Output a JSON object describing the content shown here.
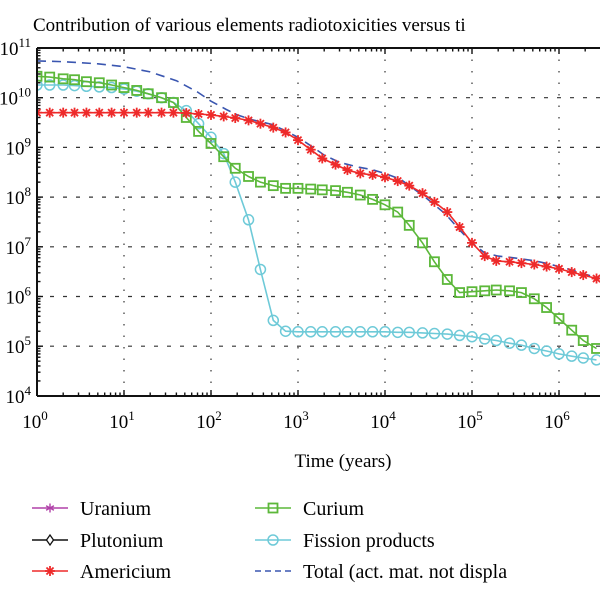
{
  "chart_data": {
    "type": "line",
    "title": "Contribution of various elements radiotoxicities versus ti",
    "xlabel": "Time (years)",
    "ylabel": "",
    "xscale": "log",
    "yscale": "log",
    "xlim": [
      1,
      3000000.0
    ],
    "ylim": [
      10000.0,
      100000000000.0
    ],
    "grid": true,
    "x_ticks": [
      {
        "value": 1,
        "base": "10",
        "exp": "0"
      },
      {
        "value": 10,
        "base": "10",
        "exp": "1"
      },
      {
        "value": 100,
        "base": "10",
        "exp": "2"
      },
      {
        "value": 1000,
        "base": "10",
        "exp": "3"
      },
      {
        "value": 10000,
        "base": "10",
        "exp": "4"
      },
      {
        "value": 100000,
        "base": "10",
        "exp": "5"
      },
      {
        "value": 1000000,
        "base": "10",
        "exp": "6"
      }
    ],
    "y_ticks": [
      {
        "value": 10000.0,
        "base": "10",
        "exp": "4"
      },
      {
        "value": 100000.0,
        "base": "10",
        "exp": "5"
      },
      {
        "value": 1000000.0,
        "base": "10",
        "exp": "6"
      },
      {
        "value": 10000000.0,
        "base": "10",
        "exp": "7"
      },
      {
        "value": 100000000.0,
        "base": "10",
        "exp": "8"
      },
      {
        "value": 1000000000.0,
        "base": "10",
        "exp": "9"
      },
      {
        "value": 10000000000.0,
        "base": "10",
        "exp": "10"
      },
      {
        "value": 100000000000.0,
        "base": "10",
        "exp": "11"
      }
    ],
    "legend_position": "bottom",
    "series": [
      {
        "name": "Uranium",
        "color": "#b040a8",
        "marker": "star",
        "dash": false,
        "x": [],
        "y": []
      },
      {
        "name": "Plutonium",
        "color": "#111111",
        "marker": "diamond",
        "dash": false,
        "x": [],
        "y": []
      },
      {
        "name": "Americium",
        "color": "#ee2a2a",
        "marker": "asterisk",
        "dash": false,
        "x": [
          1,
          1.4,
          2,
          2.7,
          3.7,
          5.2,
          7.2,
          10,
          14,
          19,
          27,
          37,
          52,
          72,
          100,
          140,
          190,
          270,
          370,
          520,
          720,
          1000,
          1400,
          1900,
          2700,
          3700,
          5200,
          7200,
          10000,
          14000,
          19000,
          27000,
          37000,
          52000,
          72000,
          100000,
          140000,
          190000,
          270000,
          370000,
          520000,
          720000,
          1000000,
          1400000,
          1900000,
          2700000
        ],
        "y": [
          5000000000.0,
          5000000000.0,
          5000000000.0,
          5000000000.0,
          5000000000.0,
          5000000000.0,
          5000000000.0,
          5000000000.0,
          5000000000.0,
          5000000000.0,
          5000000000.0,
          5000000000.0,
          4900000000.0,
          4700000000.0,
          4500000000.0,
          4200000000.0,
          3900000000.0,
          3500000000.0,
          3000000000.0,
          2500000000.0,
          2000000000.0,
          1400000000.0,
          900000000.0,
          600000000.0,
          450000000.0,
          350000000.0,
          300000000.0,
          280000000.0,
          250000000.0,
          210000000.0,
          170000000.0,
          120000000.0,
          80000000.0,
          50000000.0,
          25000000.0,
          12000000.0,
          6500000.0,
          5200000.0,
          5000000.0,
          4700000.0,
          4400000.0,
          4000000.0,
          3600000.0,
          3100000.0,
          2700000.0,
          2300000.0
        ]
      },
      {
        "name": "Curium",
        "color": "#5cb83a",
        "marker": "square",
        "dash": false,
        "x": [
          1,
          1.4,
          2,
          2.7,
          3.7,
          5.2,
          7.2,
          10,
          14,
          19,
          27,
          37,
          52,
          72,
          100,
          140,
          190,
          270,
          370,
          520,
          720,
          1000,
          1400,
          1900,
          2700,
          3700,
          5200,
          7200,
          10000,
          14000,
          19000,
          27000,
          37000,
          52000,
          72000,
          100000,
          140000,
          190000,
          270000,
          370000,
          520000,
          720000,
          1000000,
          1400000,
          1900000,
          2700000
        ],
        "y": [
          27000000000.0,
          26000000000.0,
          24000000000.0,
          23000000000.0,
          21000000000.0,
          20000000000.0,
          18000000000.0,
          16000000000.0,
          14000000000.0,
          12000000000.0,
          10000000000.0,
          8000000000.0,
          4000000000.0,
          2100000000.0,
          1200000000.0,
          650000000.0,
          380000000.0,
          260000000.0,
          200000000.0,
          170000000.0,
          150000000.0,
          150000000.0,
          145000000.0,
          140000000.0,
          135000000.0,
          125000000.0,
          110000000.0,
          90000000.0,
          70000000.0,
          50000000.0,
          27000000.0,
          12000000.0,
          5000000.0,
          2200000.0,
          1200000.0,
          1250000.0,
          1300000.0,
          1350000.0,
          1300000.0,
          1200000.0,
          900000.0,
          600000.0,
          360000.0,
          210000.0,
          130000.0,
          90000.0
        ]
      },
      {
        "name": "Fission products",
        "color": "#6ecad8",
        "marker": "circle",
        "dash": false,
        "x": [
          1,
          1.4,
          2,
          2.7,
          3.7,
          5.2,
          7.2,
          10,
          14,
          19,
          27,
          37,
          52,
          72,
          100,
          140,
          190,
          270,
          370,
          520,
          720,
          1000,
          1400,
          1900,
          2700,
          3700,
          5200,
          7200,
          10000,
          14000,
          19000,
          27000,
          37000,
          52000,
          72000,
          100000,
          140000,
          190000,
          270000,
          370000,
          520000,
          720000,
          1000000,
          1400000,
          1900000,
          2700000
        ],
        "y": [
          18000000000.0,
          18000000000.0,
          18000000000.0,
          17500000000.0,
          17000000000.0,
          16500000000.0,
          16000000000.0,
          15000000000.0,
          13500000000.0,
          12000000000.0,
          10000000000.0,
          8000000000.0,
          5500000000.0,
          3000000000.0,
          1600000000.0,
          750000000.0,
          200000000.0,
          35000000.0,
          3500000.0,
          330000.0,
          200000.0,
          195000.0,
          195000.0,
          195000.0,
          195000.0,
          195000.0,
          195000.0,
          195000.0,
          195000.0,
          190000.0,
          190000.0,
          185000.0,
          180000.0,
          175000.0,
          165000.0,
          155000.0,
          140000.0,
          130000.0,
          115000.0,
          105000.0,
          90000.0,
          80000.0,
          70000.0,
          63000.0,
          58000.0,
          53000.0
        ]
      },
      {
        "name": "Total (act. mat. not displa",
        "color": "#3a56b0",
        "marker": "none",
        "dash": true,
        "x": [
          1,
          2,
          5,
          10,
          20,
          40,
          70,
          100,
          150,
          200,
          300,
          500,
          700,
          1000,
          1500,
          2000,
          3000,
          5000,
          7000,
          10000,
          15000,
          20000,
          30000,
          50000,
          70000,
          100000,
          140000,
          200000,
          300000,
          500000,
          700000,
          1000000,
          1500000,
          2000000,
          3000000
        ],
        "y": [
          55000000000.0,
          53000000000.0,
          48000000000.0,
          42000000000.0,
          33000000000.0,
          22000000000.0,
          13000000000.0,
          8500000000.0,
          5800000000.0,
          4500000000.0,
          3600000000.0,
          2900000000.0,
          2200000000.0,
          1600000000.0,
          1000000000.0,
          700000000.0,
          500000000.0,
          400000000.0,
          360000000.0,
          300000000.0,
          230000000.0,
          160000000.0,
          95000000.0,
          45000000.0,
          23000000.0,
          12000000.0,
          7500000.0,
          6500000.0,
          6000000.0,
          5300000.0,
          4700000.0,
          4000000.0,
          3300000.0,
          2800000.0,
          2300000.0
        ]
      }
    ]
  },
  "legend": {
    "items": [
      {
        "label": "Uranium"
      },
      {
        "label": "Plutonium"
      },
      {
        "label": "Americium"
      },
      {
        "label": "Curium"
      },
      {
        "label": "Fission products"
      },
      {
        "label": "Total (act. mat. not displa"
      }
    ]
  }
}
